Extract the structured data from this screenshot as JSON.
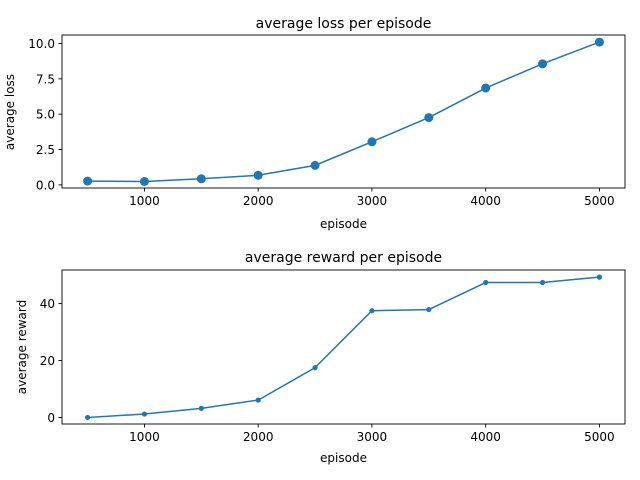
{
  "colors": {
    "series": "#1f77b4"
  },
  "chart_data": [
    {
      "type": "line",
      "title": "average loss per episode",
      "xlabel": "episode",
      "ylabel": "average loss",
      "x": [
        500,
        1000,
        1500,
        2000,
        2500,
        3000,
        3500,
        4000,
        4500,
        5000
      ],
      "series": [
        {
          "values": [
            0.27,
            0.24,
            0.43,
            0.68,
            1.38,
            3.05,
            4.76,
            6.85,
            8.56,
            10.1
          ]
        }
      ],
      "xlim": [
        275,
        5225
      ],
      "ylim": [
        -0.22,
        10.6
      ],
      "xticks": [
        1000,
        2000,
        3000,
        4000,
        5000
      ],
      "xtick_labels": [
        "1000",
        "2000",
        "3000",
        "4000",
        "5000"
      ],
      "yticks": [
        0,
        2.5,
        5,
        7.5,
        10
      ],
      "ytick_labels": [
        "0.0",
        "2.5",
        "5.0",
        "7.5",
        "10.0"
      ],
      "marker": "large-circle",
      "grid": false
    },
    {
      "type": "line",
      "title": "average reward per episode",
      "xlabel": "episode",
      "ylabel": "average reward",
      "x": [
        500,
        1000,
        1500,
        2000,
        2500,
        3000,
        3500,
        4000,
        4500,
        5000
      ],
      "series": [
        {
          "values": [
            0,
            1.2,
            3.2,
            6.1,
            17.5,
            37.5,
            37.9,
            47.4,
            47.4,
            49.3
          ]
        }
      ],
      "xlim": [
        275,
        5225
      ],
      "ylim": [
        -2.3,
        51.8
      ],
      "xticks": [
        1000,
        2000,
        3000,
        4000,
        5000
      ],
      "xtick_labels": [
        "1000",
        "2000",
        "3000",
        "4000",
        "5000"
      ],
      "yticks": [
        0,
        20,
        40
      ],
      "ytick_labels": [
        "0",
        "20",
        "40"
      ],
      "marker": "small-circle",
      "grid": false
    }
  ]
}
